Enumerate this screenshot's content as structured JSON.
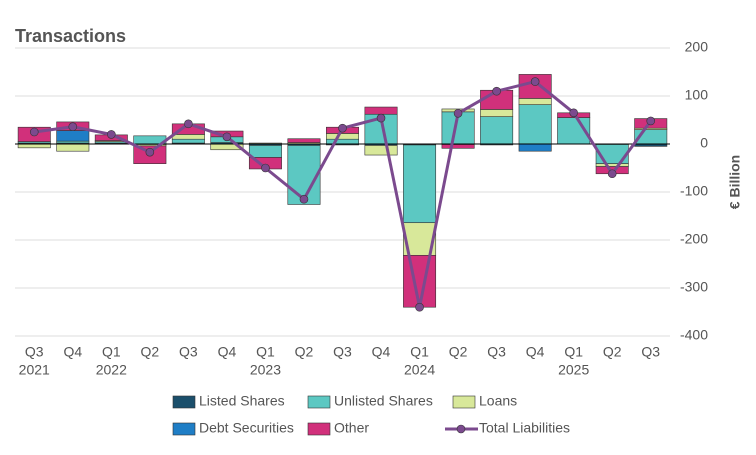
{
  "chart_data": {
    "type": "bar",
    "stacked": true,
    "title": "Transactions",
    "y_label": "€ Billion",
    "categories": [
      "Q3",
      "Q4",
      "Q1",
      "Q2",
      "Q3",
      "Q4",
      "Q1",
      "Q2",
      "Q3",
      "Q4",
      "Q1",
      "Q2",
      "Q3",
      "Q4",
      "Q1",
      "Q2",
      "Q3"
    ],
    "year_labels": [
      "2021",
      null,
      "2022",
      null,
      null,
      null,
      "2023",
      null,
      null,
      null,
      "2024",
      null,
      null,
      null,
      "2025",
      null,
      null
    ],
    "series": [
      {
        "name": "Listed Shares",
        "color": "#1b4f6b",
        "values": [
          2,
          2,
          2,
          -1,
          2,
          3,
          -3,
          -3,
          -2,
          -3,
          -2,
          -1,
          -2,
          0,
          0,
          -1,
          -5
        ]
      },
      {
        "name": "Unlisted Shares",
        "color": "#5cc8c2",
        "values": [
          3,
          4,
          3,
          17,
          8,
          12,
          -25,
          -123,
          10,
          62,
          -162,
          67,
          57,
          82,
          55,
          -40,
          30
        ]
      },
      {
        "name": "Loans",
        "color": "#d8e89a",
        "values": [
          -8,
          -15,
          2,
          -3,
          10,
          -12,
          2,
          3,
          12,
          -20,
          -68,
          6,
          15,
          13,
          0,
          -6,
          3
        ]
      },
      {
        "name": "Debt Securities",
        "color": "#1f7ec6",
        "values": [
          0,
          22,
          0,
          0,
          0,
          0,
          0,
          0,
          0,
          0,
          0,
          0,
          0,
          -15,
          0,
          0,
          0
        ]
      },
      {
        "name": "Other",
        "color": "#d1307b",
        "values": [
          30,
          18,
          12,
          -37,
          22,
          12,
          -24,
          8,
          13,
          15,
          -108,
          -8,
          40,
          50,
          10,
          -15,
          20
        ]
      },
      {
        "name": "Total Liabilities",
        "type": "line",
        "color": "#7b4a8e",
        "values": [
          25,
          36,
          20,
          -17,
          42,
          15,
          -50,
          -115,
          33,
          54,
          -340,
          64,
          110,
          130,
          65,
          -62,
          48
        ]
      }
    ],
    "ylim": [
      -400,
      200
    ],
    "yticks": [
      -400,
      -300,
      -200,
      -100,
      0,
      100,
      200
    ],
    "grid": true
  }
}
